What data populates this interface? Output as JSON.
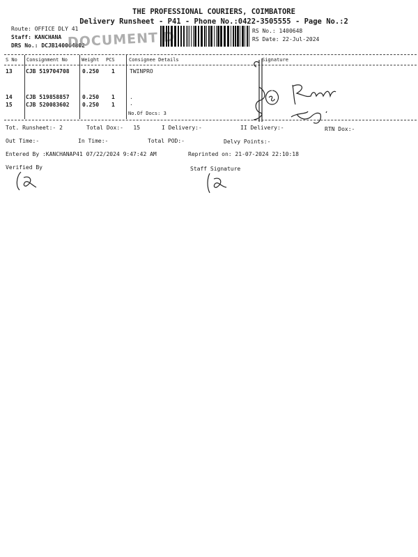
{
  "header": {
    "company": "THE PROFESSIONAL COURIERS, COIMBATORE",
    "subtitle": "Delivery Runsheet - P41 - Phone No.:0422-3505555 - Page No.:2",
    "route": "Route: OFFICE DLY 41",
    "staff": "Staff: KANCHANA",
    "drs_no": "DRS No.: DCJB140064802",
    "rs_no": "RS No.: 1400648",
    "rs_date": "RS Date: 22-Jul-2024",
    "stamp": "DOCUMENT DELIVERY"
  },
  "table": {
    "columns": [
      "S No",
      "Consignment No",
      "Weight",
      "PCS",
      "Consignee Details",
      "Signature"
    ],
    "rows": [
      {
        "sno": "13",
        "consignment": "CJB 519704708",
        "weight": "0.250",
        "pcs": "1",
        "consignee": "TWINPRO"
      },
      {
        "sno": "14",
        "consignment": "CJB 519858857",
        "weight": "0.250",
        "pcs": "1",
        "consignee": "."
      },
      {
        "sno": "15",
        "consignment": "CJB 520083602",
        "weight": "0.250",
        "pcs": "1",
        "consignee": "."
      }
    ],
    "docs_count": "No.Of Docs: 3"
  },
  "summary": {
    "tot_runsheet": "Tot. Runsheet:- 2",
    "total_dox": "Total Dox:-   15",
    "i_delivery": "I Delivery:-",
    "ii_delivery": "II Delivery:-",
    "rtn_dox": "RTN Dox:-",
    "out_time": "Out Time:-",
    "in_time": "In Time:-",
    "total_pod": "Total POD:-",
    "delvy_points": "Delvy Points:-",
    "entered_by": "Entered By :KANCHANAP41 07/22/2024 9:47:42 AM",
    "reprinted_on": "Reprinted on: 21-07-2024 22:10:18",
    "verified_by": "Verified By",
    "staff_signature": "Staff Signature"
  },
  "handwriting": {
    "signature_text": "Ramesh"
  }
}
